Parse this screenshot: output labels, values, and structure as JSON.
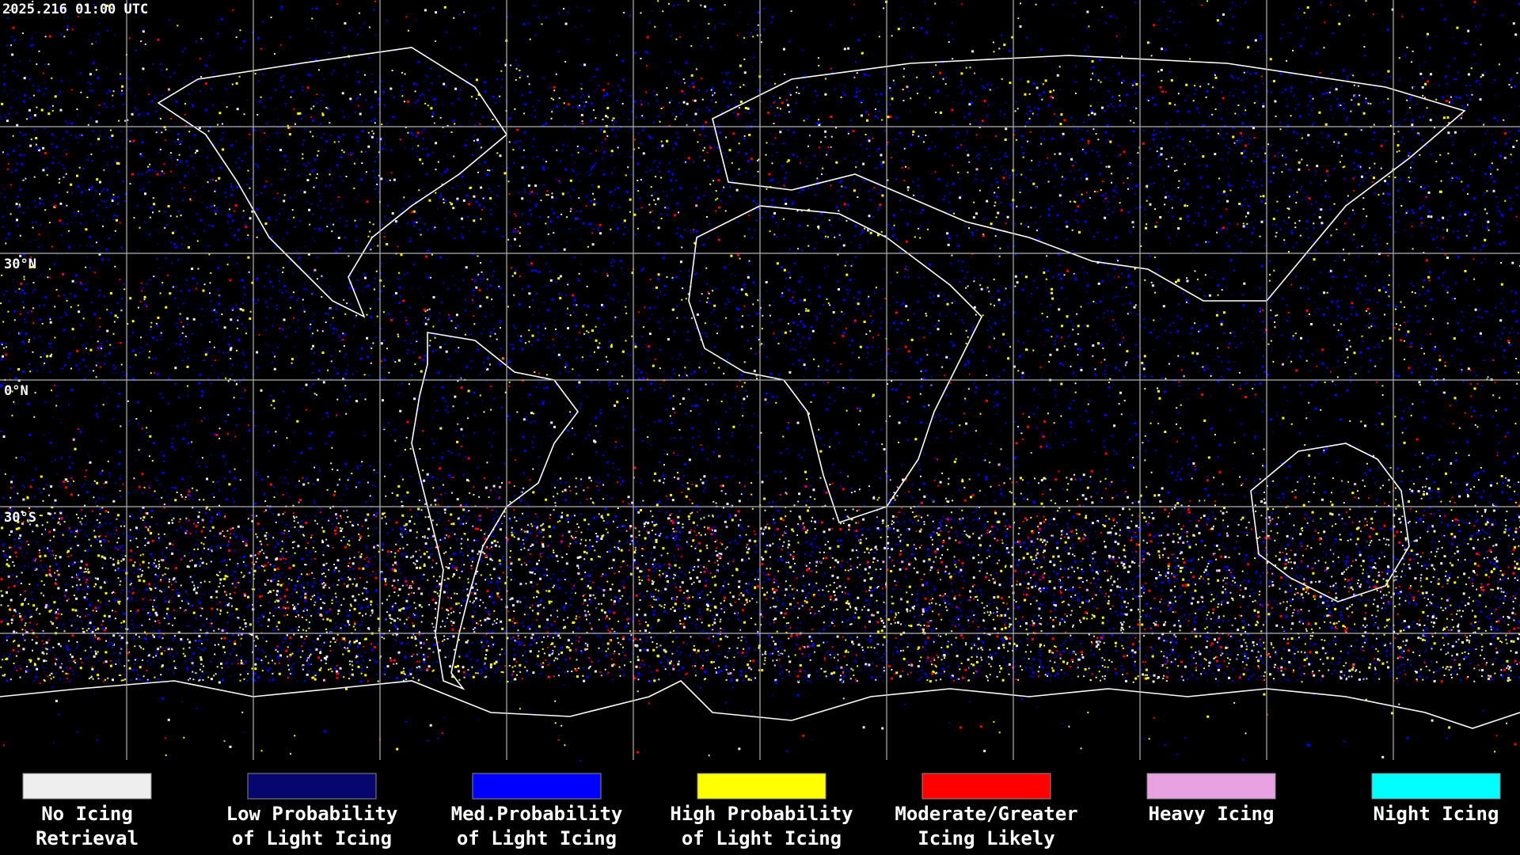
{
  "timestamp": "2025.216 01:00 UTC",
  "latitude_labels": [
    "30°N",
    "0°N",
    "30°S"
  ],
  "legend": [
    {
      "label": [
        "No Icing",
        "Retrieval"
      ],
      "color": "#eeeeee"
    },
    {
      "label": [
        "Low Probability",
        "of Light Icing"
      ],
      "color": "#06066e"
    },
    {
      "label": [
        "Med.Probability",
        "of Light Icing"
      ],
      "color": "#0000ff"
    },
    {
      "label": [
        "High Probability",
        "of Light Icing"
      ],
      "color": "#ffff00"
    },
    {
      "label": [
        "Moderate/Greater",
        "Icing Likely"
      ],
      "color": "#ff0000"
    },
    {
      "label": [
        "Heavy Icing"
      ],
      "color": "#e8a2e2"
    },
    {
      "label": [
        "Night Icing"
      ],
      "color": "#00ffff"
    }
  ]
}
